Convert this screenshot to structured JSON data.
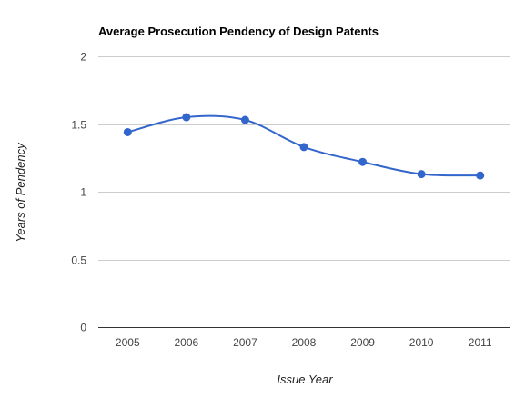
{
  "chart_data": {
    "type": "line",
    "title": "Average Prosecution Pendency of Design Patents",
    "xlabel": "Issue Year",
    "ylabel": "Years of Pendency",
    "categories": [
      "2005",
      "2006",
      "2007",
      "2008",
      "2009",
      "2010",
      "2011"
    ],
    "series": [
      {
        "values": [
          1.44,
          1.55,
          1.53,
          1.33,
          1.22,
          1.13,
          1.12
        ]
      }
    ],
    "ylim": [
      0,
      2
    ],
    "yticks": [
      {
        "value": 0,
        "label": "0"
      },
      {
        "value": 0.5,
        "label": "0.5"
      },
      {
        "value": 1,
        "label": "1"
      },
      {
        "value": 1.5,
        "label": "1.5"
      },
      {
        "value": 2,
        "label": "2"
      }
    ],
    "grid": true,
    "legend": "none",
    "smooth": true,
    "colors": {
      "line": "#3366cc",
      "grid": "#cccccc",
      "baseline": "#333333"
    }
  }
}
